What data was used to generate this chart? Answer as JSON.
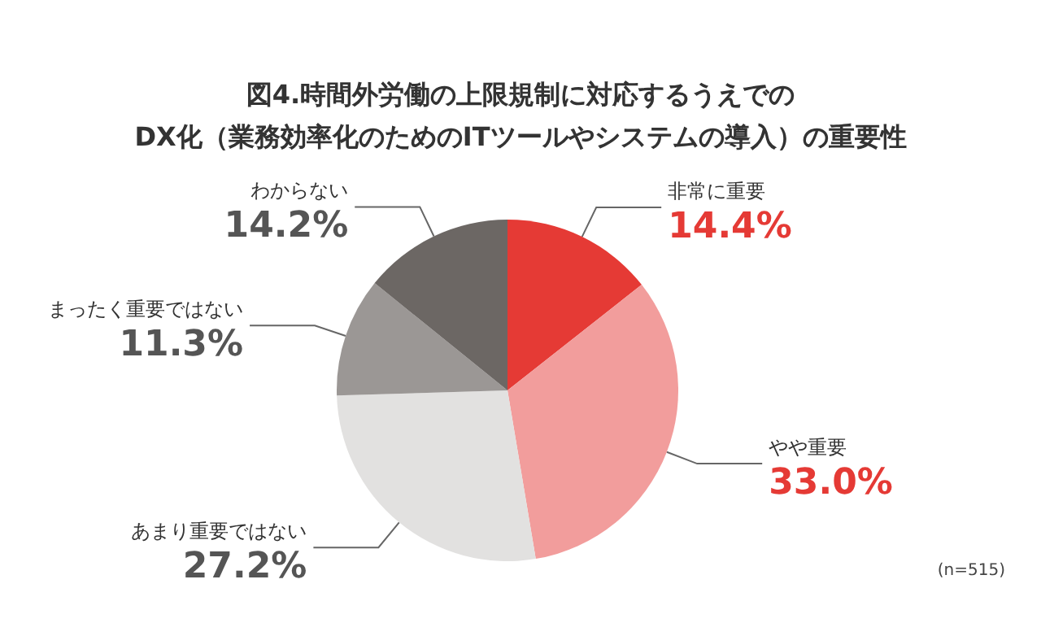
{
  "chart_data": {
    "type": "pie",
    "title": "図4.時間外労働の上限規制に対応するうえでの\nDX化（業務効率化のためのITツールやシステムの導入）の重要性",
    "categories": [
      "非常に重要",
      "やや重要",
      "あまり重要ではない",
      "まったく重要ではない",
      "わからない"
    ],
    "values": [
      14.4,
      33.0,
      27.2,
      11.3,
      14.2
    ],
    "value_labels": [
      "14.4%",
      "33.0%",
      "27.2%",
      "11.3%",
      "14.2%"
    ],
    "colors": [
      "#e53a35",
      "#f29d9c",
      "#e2e1e0",
      "#9b9795",
      "#6c6764"
    ],
    "annotations": [
      "(n=515)"
    ],
    "legend": false
  }
}
